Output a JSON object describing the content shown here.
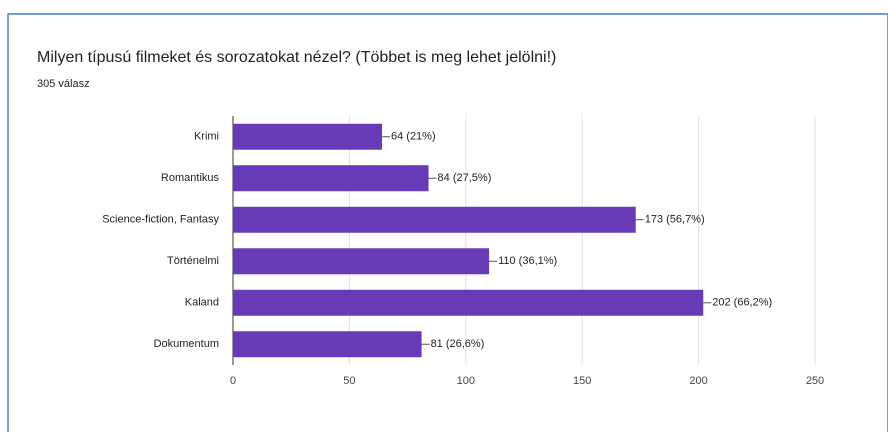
{
  "chart_data": {
    "type": "bar",
    "orientation": "horizontal",
    "title": "Milyen típusú filmeket és sorozatokat nézel?  (Többet is meg lehet jelölni!)",
    "subtitle": "305 válasz",
    "categories": [
      "Krimi",
      "Romantikus",
      "Science-fiction, Fantasy",
      "Történelmi",
      "Kaland",
      "Dokumentum"
    ],
    "values": [
      64,
      84,
      173,
      110,
      202,
      81
    ],
    "value_labels": [
      "64 (21%)",
      "84 (27,5%)",
      "173 (56,7%)",
      "110 (36,1%)",
      "202 (66,2%)",
      "81 (26,6%)"
    ],
    "color": "#673ab7",
    "xlim": [
      0,
      250
    ],
    "xticks": [
      0,
      50,
      100,
      150,
      200,
      250
    ],
    "grid": true
  }
}
